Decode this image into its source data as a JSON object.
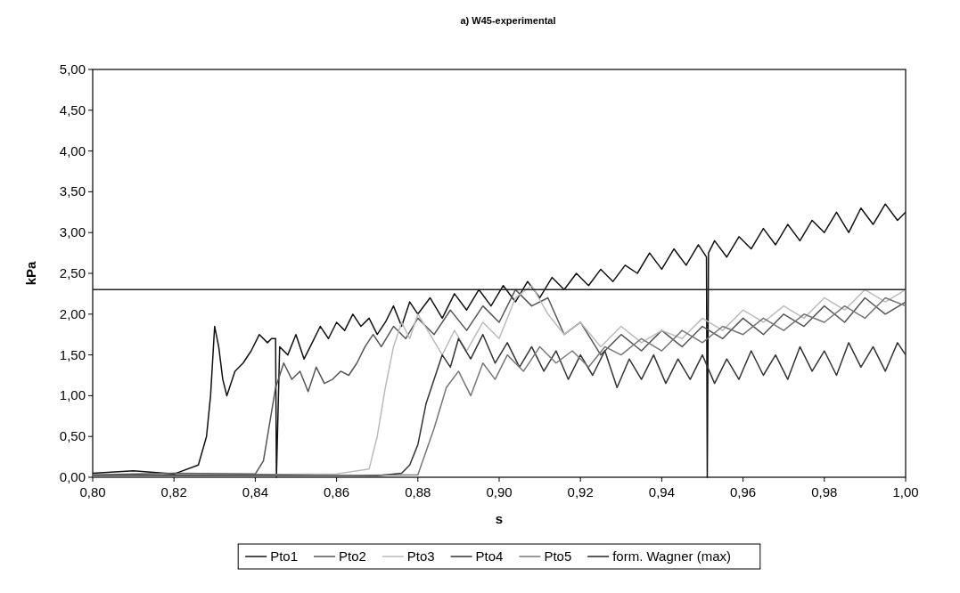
{
  "chart_data": {
    "type": "line",
    "title": "a) W45-experimental",
    "xlabel": "s",
    "ylabel": "kPa",
    "xlim": [
      0.8,
      1.0
    ],
    "ylim": [
      0,
      5
    ],
    "xticks": [
      {
        "value": 0.8,
        "label": "0,80"
      },
      {
        "value": 0.82,
        "label": "0,82"
      },
      {
        "value": 0.84,
        "label": "0,84"
      },
      {
        "value": 0.86,
        "label": "0,86"
      },
      {
        "value": 0.88,
        "label": "0,88"
      },
      {
        "value": 0.9,
        "label": "0,90"
      },
      {
        "value": 0.92,
        "label": "0,92"
      },
      {
        "value": 0.94,
        "label": "0,94"
      },
      {
        "value": 0.96,
        "label": "0,96"
      },
      {
        "value": 0.98,
        "label": "0,98"
      },
      {
        "value": 1.0,
        "label": "1,00"
      }
    ],
    "yticks": [
      {
        "value": 0,
        "label": "0,00"
      },
      {
        "value": 0.5,
        "label": "0,50"
      },
      {
        "value": 1,
        "label": "1,00"
      },
      {
        "value": 1.5,
        "label": "1,50"
      },
      {
        "value": 2,
        "label": "2,00"
      },
      {
        "value": 2.5,
        "label": "2,50"
      },
      {
        "value": 3,
        "label": "3,00"
      },
      {
        "value": 3.5,
        "label": "3,50"
      },
      {
        "value": 4,
        "label": "4,00"
      },
      {
        "value": 4.5,
        "label": "4,50"
      },
      {
        "value": 5,
        "label": "5,00"
      }
    ],
    "grid": false,
    "legend": "bottom",
    "marker": "none",
    "line_style": "solid",
    "series": [
      {
        "name": "Pto1",
        "color": "#111111",
        "x": [
          0.8,
          0.81,
          0.82,
          0.826,
          0.828,
          0.829,
          0.83,
          0.831,
          0.832,
          0.833,
          0.835,
          0.837,
          0.839,
          0.841,
          0.843,
          0.844,
          0.845,
          0.8452,
          0.846,
          0.848,
          0.85,
          0.852,
          0.854,
          0.856,
          0.858,
          0.86,
          0.862,
          0.864,
          0.866,
          0.868,
          0.87,
          0.872,
          0.874,
          0.876,
          0.878,
          0.88,
          0.883,
          0.886,
          0.889,
          0.892,
          0.895,
          0.898,
          0.901,
          0.904,
          0.907,
          0.91,
          0.913,
          0.916,
          0.919,
          0.922,
          0.925,
          0.928,
          0.931,
          0.934,
          0.937,
          0.94,
          0.943,
          0.946,
          0.949,
          0.951,
          0.9512,
          0.9515,
          0.953,
          0.956,
          0.959,
          0.962,
          0.965,
          0.968,
          0.971,
          0.974,
          0.977,
          0.98,
          0.983,
          0.986,
          0.989,
          0.992,
          0.995,
          0.998,
          1.0
        ],
        "values": [
          0.05,
          0.08,
          0.04,
          0.15,
          0.5,
          1.0,
          1.85,
          1.6,
          1.2,
          1.0,
          1.3,
          1.4,
          1.55,
          1.75,
          1.65,
          1.7,
          1.7,
          0.0,
          1.6,
          1.5,
          1.75,
          1.45,
          1.65,
          1.85,
          1.7,
          1.9,
          1.8,
          2.0,
          1.85,
          1.95,
          1.75,
          1.9,
          2.1,
          1.85,
          2.15,
          2.0,
          2.2,
          1.95,
          2.25,
          2.05,
          2.3,
          2.1,
          2.35,
          2.15,
          2.4,
          2.2,
          2.45,
          2.3,
          2.5,
          2.35,
          2.55,
          2.4,
          2.6,
          2.5,
          2.75,
          2.55,
          2.8,
          2.6,
          2.85,
          2.7,
          0.0,
          2.75,
          2.9,
          2.7,
          2.95,
          2.8,
          3.05,
          2.85,
          3.1,
          2.9,
          3.15,
          3.0,
          3.25,
          3.0,
          3.3,
          3.1,
          3.35,
          3.15,
          3.25
        ]
      },
      {
        "name": "Pto2",
        "color": "#555555",
        "x": [
          0.8,
          0.82,
          0.84,
          0.842,
          0.843,
          0.844,
          0.845,
          0.847,
          0.849,
          0.851,
          0.853,
          0.855,
          0.857,
          0.859,
          0.861,
          0.863,
          0.865,
          0.867,
          0.869,
          0.871,
          0.874,
          0.877,
          0.88,
          0.884,
          0.888,
          0.892,
          0.896,
          0.9,
          0.904,
          0.908,
          0.912,
          0.916,
          0.92,
          0.925,
          0.93,
          0.935,
          0.94,
          0.945,
          0.95,
          0.955,
          0.96,
          0.965,
          0.97,
          0.975,
          0.98,
          0.985,
          0.99,
          0.995,
          1.0
        ],
        "values": [
          0.03,
          0.05,
          0.04,
          0.2,
          0.5,
          0.8,
          1.1,
          1.4,
          1.2,
          1.3,
          1.05,
          1.35,
          1.15,
          1.2,
          1.3,
          1.25,
          1.4,
          1.6,
          1.75,
          1.6,
          1.85,
          1.7,
          1.95,
          1.75,
          2.05,
          1.8,
          2.1,
          1.9,
          2.3,
          2.1,
          2.2,
          1.75,
          1.9,
          1.5,
          1.75,
          1.55,
          1.8,
          1.6,
          1.85,
          1.7,
          1.95,
          1.75,
          2.0,
          1.85,
          2.1,
          1.9,
          2.2,
          2.0,
          2.15
        ]
      },
      {
        "name": "Pto3",
        "color": "#bbbbbb",
        "x": [
          0.8,
          0.86,
          0.868,
          0.87,
          0.872,
          0.874,
          0.876,
          0.878,
          0.88,
          0.883,
          0.886,
          0.889,
          0.892,
          0.896,
          0.9,
          0.904,
          0.908,
          0.912,
          0.916,
          0.92,
          0.925,
          0.93,
          0.935,
          0.94,
          0.945,
          0.95,
          0.955,
          0.96,
          0.965,
          0.97,
          0.975,
          0.98,
          0.985,
          0.99,
          0.995,
          1.0
        ],
        "values": [
          0.02,
          0.04,
          0.1,
          0.5,
          1.1,
          1.6,
          1.9,
          1.7,
          2.0,
          1.75,
          1.5,
          1.8,
          1.55,
          1.9,
          1.7,
          2.2,
          2.35,
          2.0,
          1.75,
          1.9,
          1.6,
          1.85,
          1.65,
          1.8,
          1.7,
          1.95,
          1.8,
          2.05,
          1.9,
          2.1,
          1.95,
          2.2,
          2.05,
          2.3,
          2.15,
          2.3
        ]
      },
      {
        "name": "Pto4",
        "color": "#333333",
        "x": [
          0.8,
          0.84,
          0.87,
          0.876,
          0.878,
          0.88,
          0.882,
          0.884,
          0.886,
          0.888,
          0.89,
          0.893,
          0.896,
          0.899,
          0.902,
          0.905,
          0.908,
          0.911,
          0.914,
          0.917,
          0.92,
          0.923,
          0.926,
          0.929,
          0.932,
          0.935,
          0.938,
          0.941,
          0.944,
          0.947,
          0.95,
          0.953,
          0.956,
          0.959,
          0.962,
          0.965,
          0.968,
          0.971,
          0.974,
          0.977,
          0.98,
          0.983,
          0.986,
          0.989,
          0.992,
          0.995,
          0.998,
          1.0
        ],
        "values": [
          0.02,
          0.03,
          0.02,
          0.05,
          0.15,
          0.4,
          0.9,
          1.2,
          1.5,
          1.35,
          1.7,
          1.45,
          1.75,
          1.4,
          1.65,
          1.35,
          1.6,
          1.3,
          1.55,
          1.2,
          1.5,
          1.25,
          1.55,
          1.1,
          1.45,
          1.2,
          1.5,
          1.15,
          1.45,
          1.2,
          1.5,
          1.15,
          1.45,
          1.2,
          1.55,
          1.25,
          1.5,
          1.2,
          1.6,
          1.3,
          1.55,
          1.25,
          1.65,
          1.35,
          1.6,
          1.3,
          1.65,
          1.5
        ]
      },
      {
        "name": "Pto5",
        "color": "#777777",
        "x": [
          0.8,
          0.85,
          0.88,
          0.884,
          0.887,
          0.89,
          0.893,
          0.896,
          0.899,
          0.902,
          0.906,
          0.91,
          0.914,
          0.918,
          0.922,
          0.926,
          0.93,
          0.935,
          0.94,
          0.945,
          0.95,
          0.955,
          0.96,
          0.965,
          0.97,
          0.975,
          0.98,
          0.985,
          0.99,
          0.995,
          1.0
        ],
        "values": [
          0.01,
          0.02,
          0.03,
          0.6,
          1.1,
          1.3,
          1.0,
          1.4,
          1.2,
          1.5,
          1.3,
          1.6,
          1.4,
          1.55,
          1.35,
          1.6,
          1.5,
          1.7,
          1.55,
          1.8,
          1.65,
          1.85,
          1.75,
          1.95,
          1.8,
          2.0,
          1.9,
          2.1,
          1.95,
          2.2,
          2.1
        ]
      },
      {
        "name": "form. Wagner (max)",
        "color": "#222222",
        "x": [
          0.8,
          1.0
        ],
        "values": [
          2.3,
          2.3
        ]
      }
    ]
  }
}
